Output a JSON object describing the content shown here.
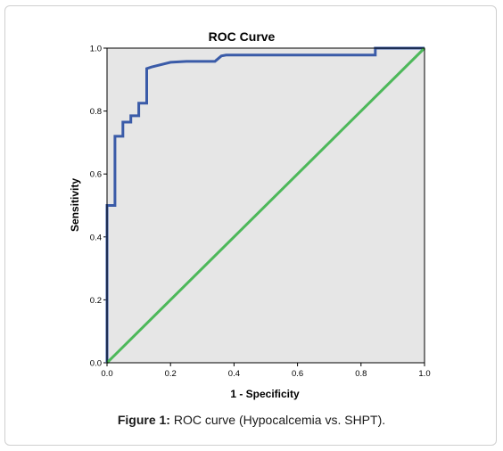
{
  "chart_data": {
    "type": "line",
    "title": "ROC Curve",
    "xlabel": "1 - Specificity",
    "ylabel": "Sensitivity",
    "xlim": [
      0,
      1
    ],
    "ylim": [
      0,
      1
    ],
    "x_ticks": [
      "0.0",
      "0.2",
      "0.4",
      "0.6",
      "0.8",
      "1.0"
    ],
    "y_ticks": [
      "0.0",
      "0.2",
      "0.4",
      "0.6",
      "0.8",
      "1.0"
    ],
    "grid": false,
    "background_color": "#e6e6e6",
    "series": [
      {
        "color": "#3a5ba8",
        "x": [
          0.0,
          0.0,
          0.025,
          0.025,
          0.05,
          0.05,
          0.075,
          0.075,
          0.1,
          0.1,
          0.125,
          0.125,
          0.14,
          0.2,
          0.25,
          0.34,
          0.36,
          0.375,
          0.5,
          0.7,
          0.845,
          0.845,
          1.0
        ],
        "y": [
          0.0,
          0.5,
          0.5,
          0.72,
          0.72,
          0.765,
          0.765,
          0.785,
          0.785,
          0.825,
          0.825,
          0.935,
          0.94,
          0.955,
          0.958,
          0.958,
          0.975,
          0.978,
          0.978,
          0.978,
          0.978,
          1.0,
          1.0
        ]
      },
      {
        "color": "#4db85a",
        "x": [
          0.0,
          1.0
        ],
        "y": [
          0.0,
          1.0
        ]
      }
    ]
  },
  "caption": {
    "label": "Figure 1:",
    "text": " ROC curve (Hypocalcemia vs. SHPT)."
  }
}
